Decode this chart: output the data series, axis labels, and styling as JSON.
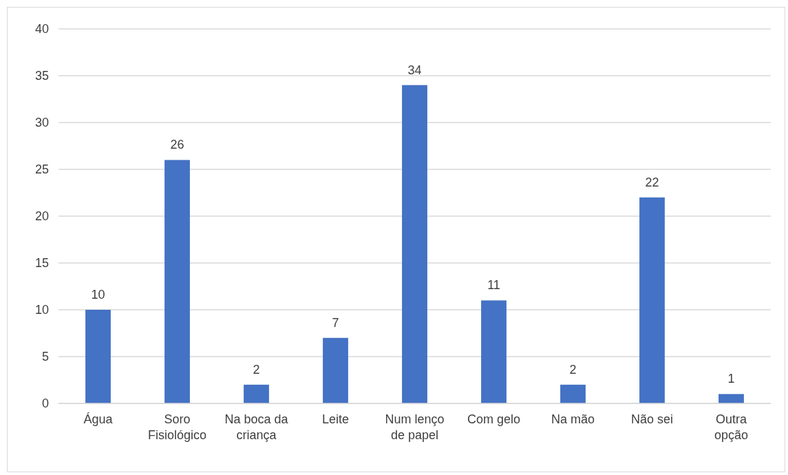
{
  "chart_data": {
    "type": "bar",
    "categories": [
      "Água",
      "Soro Fisiológico",
      "Na boca da criança",
      "Leite",
      "Num lenço de papel",
      "Com gelo",
      "Na mão",
      "Não sei",
      "Outra opção"
    ],
    "values": [
      10,
      26,
      2,
      7,
      34,
      11,
      2,
      22,
      1
    ],
    "color": "#4472c4",
    "ylim": [
      0,
      40
    ],
    "yticks": [
      0,
      5,
      10,
      15,
      20,
      25,
      30,
      35,
      40
    ],
    "grid": "y",
    "data_labels": true
  }
}
